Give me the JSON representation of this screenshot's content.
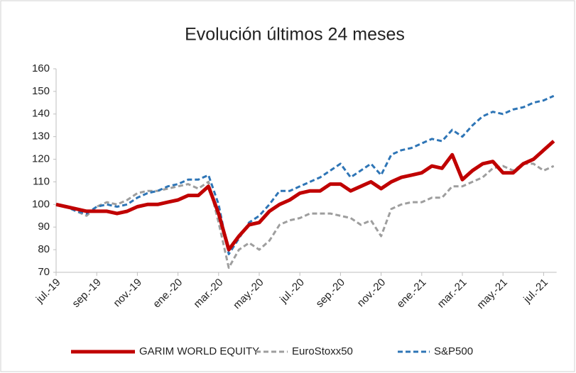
{
  "chart_data": {
    "type": "line",
    "title": "Evolución últimos 24 meses",
    "categories": [
      "jul.-19",
      null,
      null,
      null,
      "sep.-19",
      null,
      null,
      null,
      "nov.-19",
      null,
      null,
      null,
      "ene.-20",
      null,
      null,
      null,
      "mar.-20",
      null,
      null,
      null,
      "may.-20",
      null,
      null,
      null,
      "jul.-20",
      null,
      null,
      null,
      "sep.-20",
      null,
      null,
      null,
      "nov.-20",
      null,
      null,
      null,
      "ene.-21",
      null,
      null,
      null,
      "mar.-21",
      null,
      null,
      null,
      "may.-21",
      null,
      null,
      null,
      "jul.-21",
      null
    ],
    "series": [
      {
        "name": "GARIM WORLD EQUITY",
        "color": "#c00000",
        "style": "solid",
        "values": [
          100,
          99,
          98,
          97,
          97,
          97,
          96,
          97,
          99,
          100,
          100,
          101,
          102,
          104,
          104,
          108,
          96,
          80,
          86,
          91,
          92,
          97,
          100,
          102,
          105,
          106,
          106,
          109,
          109,
          106,
          108,
          110,
          107,
          110,
          112,
          113,
          114,
          117,
          116,
          122,
          111,
          115,
          118,
          119,
          114,
          114,
          118,
          120,
          124,
          128
        ]
      },
      {
        "name": "EuroStoxx50",
        "color": "#9e9e9e",
        "style": "dashed",
        "values": [
          100,
          99,
          97,
          95,
          99,
          101,
          100,
          102,
          105,
          106,
          106,
          107,
          108,
          109,
          107,
          110,
          92,
          72,
          80,
          83,
          80,
          84,
          91,
          93,
          94,
          96,
          96,
          96,
          95,
          94,
          91,
          93,
          86,
          98,
          100,
          101,
          101,
          103,
          103,
          108,
          108,
          110,
          112,
          116,
          117,
          115,
          118,
          118,
          115,
          117
        ]
      },
      {
        "name": "S&P500",
        "color": "#2e75b6",
        "style": "dashed",
        "values": [
          100,
          99,
          97,
          96,
          99,
          100,
          99,
          100,
          103,
          105,
          106,
          108,
          109,
          111,
          111,
          113,
          100,
          78,
          85,
          92,
          95,
          100,
          106,
          106,
          108,
          110,
          112,
          115,
          118,
          112,
          115,
          118,
          113,
          122,
          124,
          125,
          127,
          129,
          128,
          133,
          130,
          135,
          139,
          141,
          140,
          142,
          143,
          145,
          146,
          148
        ]
      }
    ],
    "ylim": [
      70,
      160
    ],
    "yticks": [
      70,
      80,
      90,
      100,
      110,
      120,
      130,
      140,
      150,
      160
    ],
    "grid": false,
    "legend": "bottom"
  }
}
